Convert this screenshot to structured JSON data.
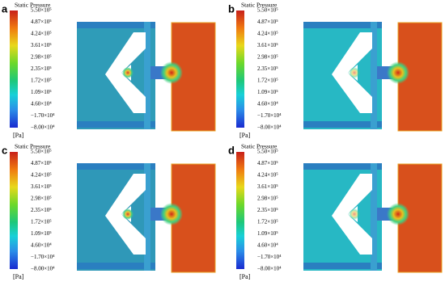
{
  "panels": [
    {
      "label": "a",
      "colorbar": {
        "title": "Static Pressure",
        "ticks": [
          "5.50×10⁵",
          "4.87×10⁵",
          "4.24×10⁵",
          "3.61×10⁵",
          "2.98×10⁵",
          "2.35×10⁵",
          "1.72×10⁵",
          "1.09×10⁵",
          "4.60×10⁴",
          "−1.70×10⁴",
          "−8.00×10⁴"
        ],
        "unit": "[Pa]"
      }
    },
    {
      "label": "b",
      "colorbar": {
        "title": "Static Pressure",
        "ticks": [
          "5.50×10⁵",
          "4.87×10⁵",
          "4.24×10⁵",
          "3.61×10⁵",
          "2.98×10⁵",
          "2.35×10⁵",
          "1.72×10⁵",
          "1.09×10⁵",
          "4.60×10⁴",
          "−1.70×10⁴",
          "−8.00×10⁴"
        ],
        "unit": "[Pa]"
      }
    },
    {
      "label": "c",
      "colorbar": {
        "title": "Static Pressure",
        "ticks": [
          "5.50×10⁵",
          "4.87×10⁵",
          "4.24×10⁵",
          "3.61×10⁵",
          "2.98×10⁵",
          "2.35×10⁵",
          "1.72×10⁵",
          "1.09×10⁵",
          "4.60×10⁴",
          "−1.70×10⁴",
          "−8.00×10⁴"
        ],
        "unit": "[Pa]"
      }
    },
    {
      "label": "d",
      "colorbar": {
        "title": "Static Pressure",
        "ticks": [
          "5.50×10⁵",
          "4.87×10⁵",
          "4.24×10⁵",
          "3.61×10⁵",
          "2.98×10⁵",
          "2.35×10⁵",
          "1.72×10⁵",
          "1.09×10⁵",
          "4.60×10⁴",
          "−1.70×10⁴",
          "−8.00×10⁴"
        ],
        "unit": "[Pa]"
      }
    }
  ]
}
